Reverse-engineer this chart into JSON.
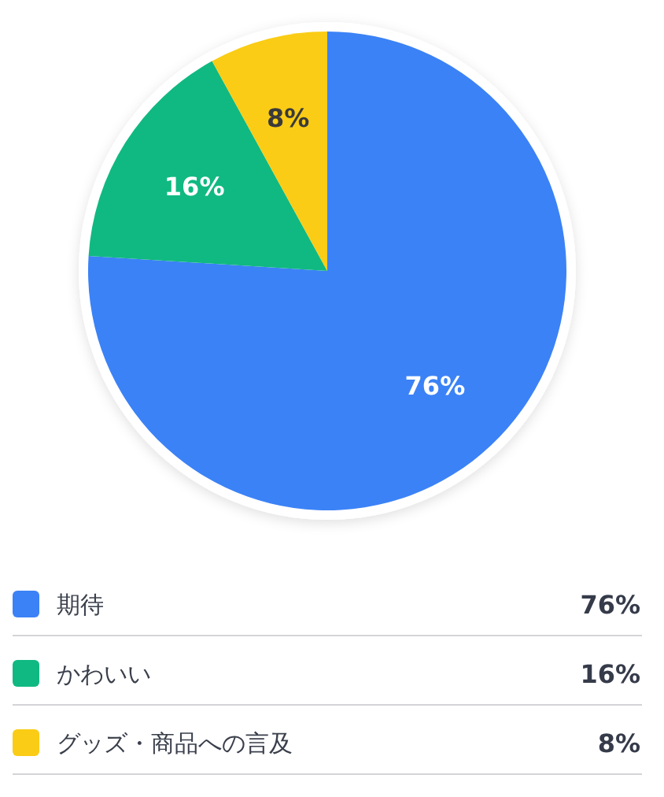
{
  "chart_data": {
    "type": "pie",
    "categories": [
      "期待",
      "かわいい",
      "グッズ・商品への言及"
    ],
    "values": [
      76,
      16,
      8
    ],
    "colors": [
      "#3b82f6",
      "#10b981",
      "#facc15"
    ],
    "value_labels": [
      "76%",
      "16%",
      "8%"
    ],
    "legend": "bottom"
  }
}
